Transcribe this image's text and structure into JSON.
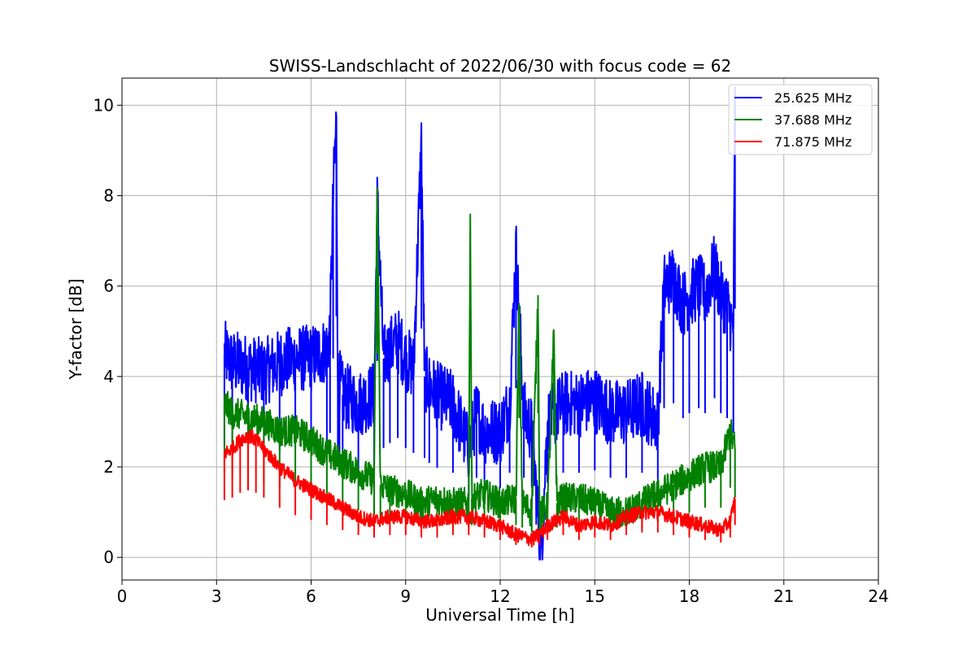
{
  "chart_data": {
    "type": "line",
    "title": "SWISS-Landschlacht of 2022/06/30 with focus code = 62",
    "xlabel": "Universal Time [h]",
    "ylabel": "Y-factor [dB]",
    "xlim": [
      0,
      24
    ],
    "ylim": [
      -0.5,
      10.6
    ],
    "xticks": [
      0,
      3,
      6,
      9,
      12,
      15,
      18,
      21,
      24
    ],
    "yticks": [
      0,
      2,
      4,
      6,
      8,
      10
    ],
    "grid": true,
    "legend_position": "top-right",
    "series": [
      {
        "name": "25.625 MHz",
        "color": "#0000ff",
        "x": [
          3.25,
          3.5,
          4.0,
          4.5,
          5.0,
          5.5,
          6.0,
          6.5,
          6.6,
          6.7,
          6.8,
          6.85,
          6.9,
          7.0,
          7.5,
          8.0,
          8.1,
          8.3,
          8.5,
          8.75,
          9.0,
          9.25,
          9.5,
          9.6,
          9.75,
          10.0,
          10.5,
          11.0,
          11.25,
          11.5,
          12.0,
          12.3,
          12.5,
          12.75,
          13.0,
          13.3,
          13.5,
          14.0,
          14.5,
          15.0,
          15.5,
          16.0,
          16.5,
          17.0,
          17.2,
          17.5,
          17.8,
          18.0,
          18.3,
          18.5,
          18.8,
          19.0,
          19.2,
          19.4,
          19.45
        ],
        "y": [
          4.5,
          4.3,
          4.2,
          4.1,
          4.3,
          4.4,
          4.4,
          4.6,
          5.0,
          8.0,
          9.7,
          4.0,
          3.9,
          3.6,
          3.4,
          3.6,
          7.9,
          4.4,
          4.6,
          4.8,
          4.4,
          4.2,
          9.2,
          4.0,
          3.8,
          3.6,
          3.4,
          2.4,
          3.2,
          2.8,
          2.8,
          3.4,
          6.8,
          3.2,
          2.8,
          0.0,
          3.0,
          3.4,
          3.4,
          3.5,
          3.2,
          3.2,
          3.4,
          3.0,
          6.0,
          6.2,
          5.6,
          5.8,
          6.0,
          5.8,
          6.4,
          5.8,
          5.6,
          5.0,
          10.0
        ]
      },
      {
        "name": "37.688 MHz",
        "color": "#008000",
        "x": [
          3.25,
          3.5,
          4.0,
          4.5,
          5.0,
          5.5,
          6.0,
          6.5,
          7.0,
          7.5,
          8.0,
          8.1,
          8.2,
          8.5,
          9.0,
          9.5,
          10.0,
          10.5,
          11.0,
          11.05,
          11.1,
          11.5,
          12.0,
          12.5,
          12.6,
          12.7,
          13.0,
          13.2,
          13.25,
          13.3,
          13.5,
          13.7,
          13.8,
          14.0,
          14.5,
          15.0,
          15.5,
          16.0,
          16.5,
          17.0,
          17.5,
          18.0,
          18.5,
          19.0,
          19.3,
          19.45
        ],
        "y": [
          3.4,
          3.2,
          3.1,
          3.0,
          2.8,
          2.8,
          2.6,
          2.3,
          2.1,
          1.9,
          1.7,
          8.2,
          1.6,
          1.5,
          1.4,
          1.2,
          1.3,
          1.2,
          1.2,
          7.6,
          1.3,
          1.4,
          1.2,
          1.3,
          5.6,
          1.2,
          1.0,
          5.8,
          1.1,
          1.0,
          1.1,
          4.9,
          1.2,
          1.3,
          1.3,
          1.2,
          1.0,
          1.0,
          1.2,
          1.4,
          1.6,
          1.8,
          2.0,
          2.0,
          2.8,
          2.4
        ]
      },
      {
        "name": "71.875 MHz",
        "color": "#ff0000",
        "x": [
          3.25,
          3.5,
          3.75,
          4.0,
          4.25,
          4.5,
          5.0,
          5.5,
          6.0,
          6.5,
          7.0,
          7.5,
          8.0,
          8.5,
          9.0,
          9.5,
          10.0,
          10.5,
          11.0,
          11.5,
          12.0,
          12.5,
          13.0,
          13.25,
          13.5,
          14.0,
          14.5,
          15.0,
          15.5,
          16.0,
          16.5,
          17.0,
          17.5,
          18.0,
          18.5,
          19.0,
          19.3,
          19.45
        ],
        "y": [
          2.3,
          2.4,
          2.6,
          2.7,
          2.6,
          2.4,
          2.0,
          1.7,
          1.5,
          1.3,
          1.1,
          0.9,
          0.8,
          0.9,
          0.9,
          0.8,
          0.8,
          0.9,
          0.9,
          0.8,
          0.7,
          0.5,
          0.4,
          0.5,
          0.7,
          0.9,
          0.7,
          0.8,
          0.7,
          0.9,
          1.0,
          1.0,
          0.9,
          0.8,
          0.7,
          0.6,
          0.8,
          1.3
        ]
      }
    ]
  }
}
